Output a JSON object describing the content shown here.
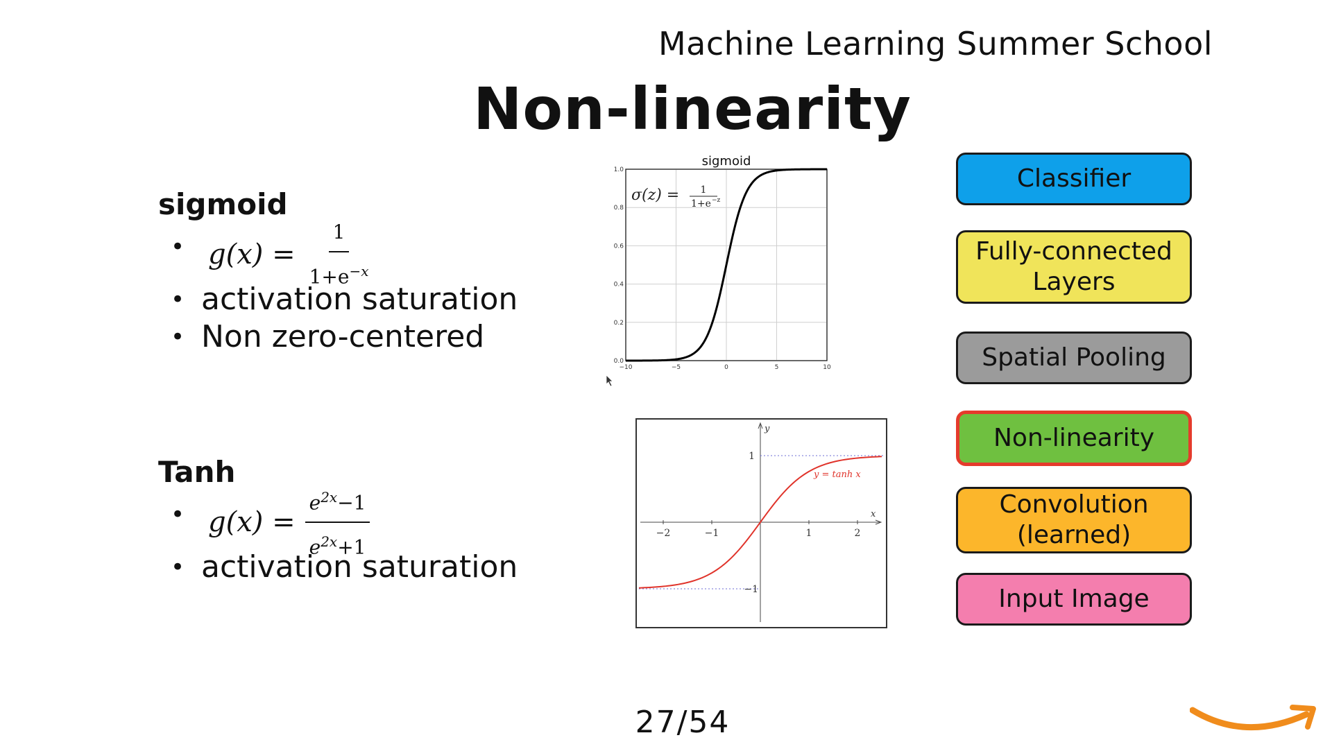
{
  "header": {
    "title": "Machine Learning Summer School"
  },
  "slide": {
    "title": "Non-linearity",
    "page": "27/54"
  },
  "sigmoid_section": {
    "title": "sigmoid",
    "formula_lhs": "g(x) =",
    "formula_num": "1",
    "formula_den": "1+e",
    "formula_den_exp": "−x",
    "bullets": [
      "activation saturation",
      "Non zero-centered"
    ]
  },
  "tanh_section": {
    "title": "Tanh",
    "formula_lhs": "g(x) =",
    "formula_num_base": "e",
    "formula_num_exp": "2x",
    "formula_num_tail": "−1",
    "formula_den_base": "e",
    "formula_den_exp": "2x",
    "formula_den_tail": "+1",
    "bullets": [
      "activation saturation"
    ]
  },
  "chart_data": [
    {
      "type": "line",
      "title": "sigmoid",
      "annotation": "σ(z) = 1 / (1+e^−z)",
      "annotation_lhs": "σ(z) =",
      "annotation_num": "1",
      "annotation_den": "1+e",
      "annotation_den_exp": "−z",
      "xlim": [
        -10,
        10
      ],
      "ylim": [
        0,
        1
      ],
      "x_ticks": [
        "−10",
        "−5",
        "0",
        "5",
        "10"
      ],
      "y_ticks": [
        "0.0",
        "0.2",
        "0.4",
        "0.6",
        "0.8",
        "1.0"
      ],
      "grid": true,
      "color": "#000000",
      "series": [
        {
          "x": [
            -10,
            -8,
            -6,
            -5,
            -4,
            -3,
            -2,
            -1,
            0,
            1,
            2,
            3,
            4,
            5,
            6,
            8,
            10
          ],
          "y": [
            0.0,
            0.0003,
            0.0025,
            0.0067,
            0.018,
            0.047,
            0.119,
            0.269,
            0.5,
            0.731,
            0.881,
            0.953,
            0.982,
            0.993,
            0.9975,
            0.9997,
            1.0
          ]
        }
      ]
    },
    {
      "type": "line",
      "series_label": "y = tanh x",
      "xlabel": "x",
      "ylabel": "y",
      "xlim": [
        -2.5,
        2.5
      ],
      "ylim": [
        -1.3,
        1.5
      ],
      "x_ticks": [
        "−2",
        "−1",
        "1",
        "2"
      ],
      "y_ticks": [
        "1",
        "−1"
      ],
      "asymptotes": [
        1,
        -1
      ],
      "color": "#e0332a",
      "series": [
        {
          "x": [
            -2.5,
            -2,
            -1.5,
            -1,
            -0.5,
            0,
            0.5,
            1,
            1.5,
            2,
            2.5
          ],
          "y": [
            -0.987,
            -0.964,
            -0.905,
            -0.762,
            -0.462,
            0,
            0.462,
            0.762,
            0.905,
            0.964,
            0.987
          ]
        }
      ]
    }
  ],
  "layer_stack": [
    {
      "label": "Classifier",
      "color": "#0ea0ea"
    },
    {
      "label": "Fully-connected\nLayers",
      "color": "#f0e45a"
    },
    {
      "label": "Spatial Pooling",
      "color": "#9b9b9b"
    },
    {
      "label": "Non-linearity",
      "color": "#6fc040",
      "highlight": true
    },
    {
      "label": "Convolution\n(learned)",
      "color": "#fcb62b"
    },
    {
      "label": "Input Image",
      "color": "#f47eae"
    }
  ],
  "logo": {
    "name": "amazon-smile-logo",
    "color": "#f08c1c"
  }
}
